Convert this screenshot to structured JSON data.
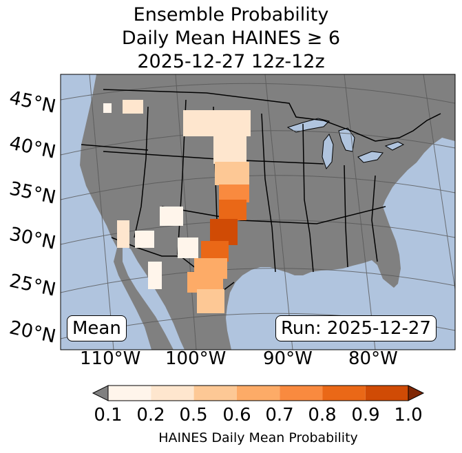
{
  "title": {
    "line1": "Ensemble Probability",
    "line2": "Daily Mean HAINES ≥ 6",
    "line3": "2025-12-27 12z-12z"
  },
  "lat_labels": [
    "45°N",
    "40°N",
    "35°N",
    "30°N",
    "25°N",
    "20°N"
  ],
  "lon_labels": [
    "110°W",
    "100°W",
    "90°W",
    "80°W"
  ],
  "map_labels": {
    "mean": "Mean",
    "run": "Run: 2025-12-27"
  },
  "colorbar": {
    "ticks": [
      "0.1",
      "0.2",
      "0.5",
      "0.6",
      "0.7",
      "0.8",
      "0.9",
      "1.0"
    ],
    "colors": [
      "#fff5eb",
      "#fee6ce",
      "#fdc895",
      "#fdab67",
      "#f98a3f",
      "#ea6817",
      "#d04b05"
    ],
    "under_color": "#808080",
    "over_color": "#7f2704",
    "label": "HAINES Daily Mean Probability"
  },
  "colors": {
    "ocean": "#b0c4de",
    "land": "#808080",
    "borders": "#000000",
    "gridlines": "#555555"
  }
}
